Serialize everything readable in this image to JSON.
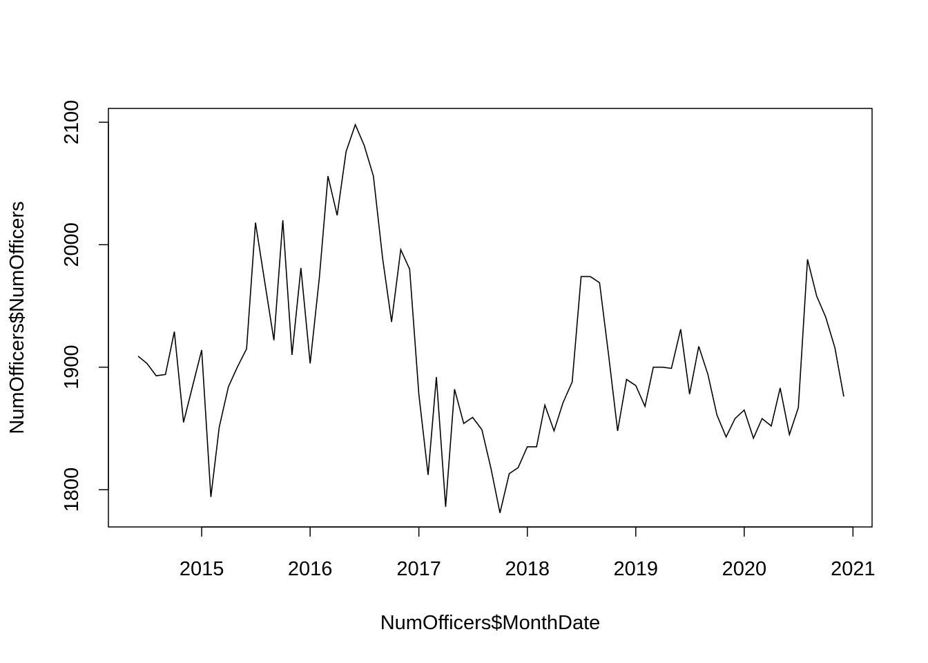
{
  "chart_data": {
    "type": "line",
    "title": "",
    "xlabel": "NumOfficers$MonthDate",
    "ylabel": "NumOfficers$NumOfficers",
    "xlim": [
      "2014-06-01",
      "2020-12-01"
    ],
    "ylim": [
      1770,
      2110
    ],
    "x_ticks": [
      "2015",
      "2016",
      "2017",
      "2018",
      "2019",
      "2020",
      "2021"
    ],
    "y_ticks": [
      "1800",
      "1900",
      "2000",
      "2100"
    ],
    "grid": false,
    "legend": "none",
    "line_color": "#000000",
    "series": [
      {
        "x": [
          "2014-06-01",
          "2014-07-01",
          "2014-08-01",
          "2014-09-01",
          "2014-10-01",
          "2014-11-01",
          "2014-12-01",
          "2015-01-01",
          "2015-02-01",
          "2015-03-01",
          "2015-04-01",
          "2015-05-01",
          "2015-06-01",
          "2015-07-01",
          "2015-08-01",
          "2015-09-01",
          "2015-10-01",
          "2015-11-01",
          "2015-12-01",
          "2016-01-01",
          "2016-02-01",
          "2016-03-01",
          "2016-04-01",
          "2016-05-01",
          "2016-06-01",
          "2016-07-01",
          "2016-08-01",
          "2016-09-01",
          "2016-10-01",
          "2016-11-01",
          "2016-12-01",
          "2017-01-01",
          "2017-02-01",
          "2017-03-01",
          "2017-04-01",
          "2017-05-01",
          "2017-06-01",
          "2017-07-01",
          "2017-08-01",
          "2017-09-01",
          "2017-10-01",
          "2017-11-01",
          "2017-12-01",
          "2018-01-01",
          "2018-02-01",
          "2018-03-01",
          "2018-04-01",
          "2018-05-01",
          "2018-06-01",
          "2018-07-01",
          "2018-08-01",
          "2018-09-01",
          "2018-10-01",
          "2018-11-01",
          "2018-12-01",
          "2019-01-01",
          "2019-02-01",
          "2019-03-01",
          "2019-04-01",
          "2019-05-01",
          "2019-06-01",
          "2019-07-01",
          "2019-08-01",
          "2019-09-01",
          "2019-10-01",
          "2019-11-01",
          "2019-12-01",
          "2020-01-01",
          "2020-02-01",
          "2020-03-01",
          "2020-04-01",
          "2020-05-01",
          "2020-06-01",
          "2020-07-01",
          "2020-08-01",
          "2020-09-01",
          "2020-10-01",
          "2020-11-01",
          "2020-12-01"
        ],
        "values": [
          1909,
          1903,
          1893,
          1894,
          1929,
          1855,
          1884,
          1914,
          1794,
          1851,
          1884,
          1900,
          1915,
          2018,
          1970,
          1922,
          2020,
          1910,
          1981,
          1903,
          1973,
          2056,
          2024,
          2076,
          2098,
          2081,
          2056,
          1989,
          1937,
          1996,
          1980,
          1878,
          1812,
          1892,
          1786,
          1882,
          1854,
          1859,
          1849,
          1817,
          1781,
          1813,
          1818,
          1835,
          1835,
          1869,
          1848,
          1871,
          1888,
          1974,
          1974,
          1969,
          1911,
          1848,
          1890,
          1885,
          1868,
          1900,
          1900,
          1899,
          1931,
          1878,
          1917,
          1894,
          1861,
          1843,
          1858,
          1865,
          1842,
          1858,
          1852,
          1883,
          1845,
          1867,
          1988,
          1958,
          1941,
          1916,
          1876
        ]
      }
    ]
  }
}
